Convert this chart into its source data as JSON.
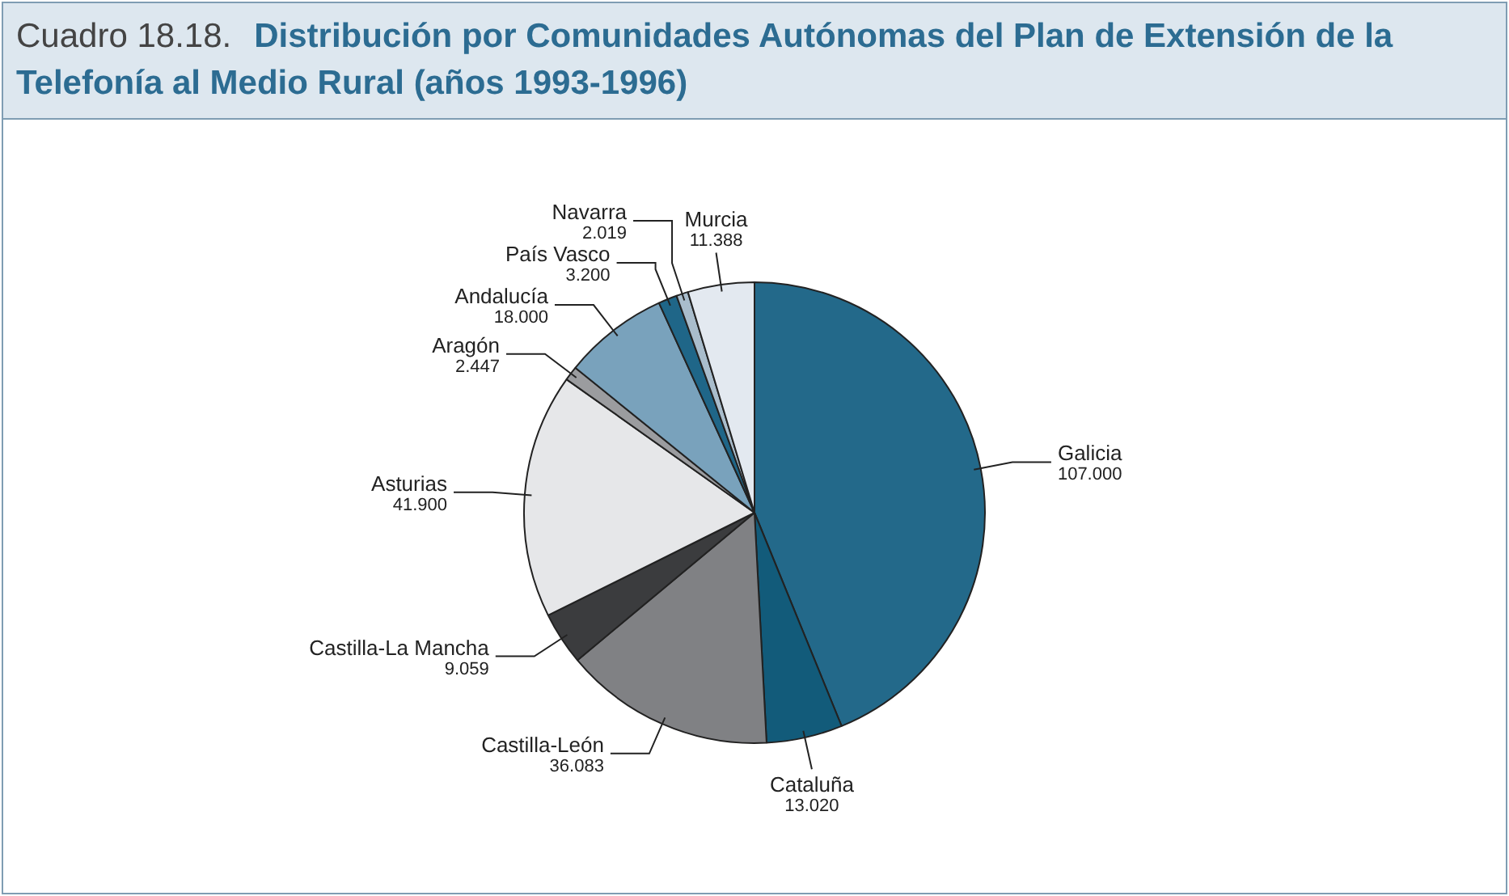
{
  "chart_data": {
    "type": "pie",
    "title": "Distribución por Comunidades Autónomas del Plan de Extensión de la Telefonía al Medio Rural (años 1993-1996)",
    "annotations": [
      "Cuadro 18.18."
    ],
    "categories": [
      "Galicia",
      "Cataluña",
      "Castilla-León",
      "Castilla-La Mancha",
      "Asturias",
      "Aragón",
      "Andalucía",
      "País Vasco",
      "Navarra",
      "Murcia"
    ],
    "values": [
      107000,
      13020,
      36083,
      9059,
      41900,
      2447,
      18000,
      3200,
      2019,
      11388
    ],
    "value_labels": [
      "107.000",
      "13.020",
      "36.083",
      "9.059",
      "41.900",
      "2.447",
      "18.000",
      "3.200",
      "2.019",
      "11.388"
    ],
    "colors": [
      "#23698a",
      "#125b7a",
      "#808184",
      "#3b3c3e",
      "#e6e7e9",
      "#9b9c9f",
      "#79a2bc",
      "#1f6688",
      "#a9bdcc",
      "#e3e9f0"
    ],
    "legend": false
  }
}
